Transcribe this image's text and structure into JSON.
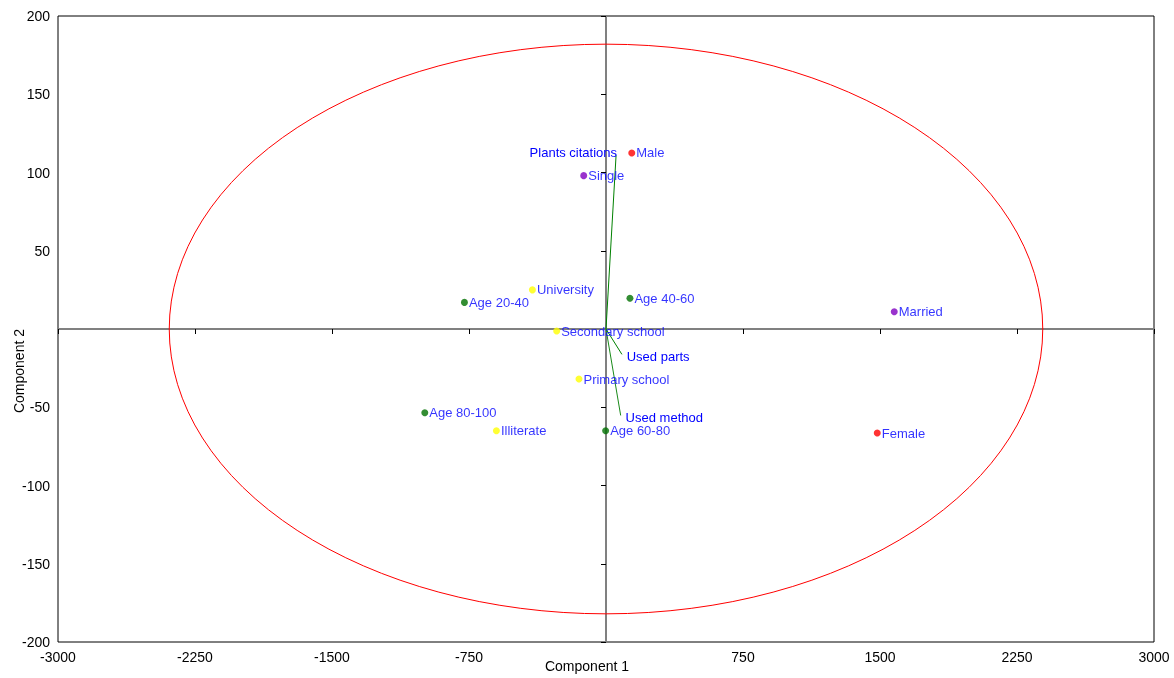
{
  "chart_data": {
    "type": "scatter",
    "xlabel": "Component 1",
    "ylabel": "Component 2",
    "xlim": [
      -3000,
      3000
    ],
    "ylim": [
      -200,
      200
    ],
    "xticks": [
      -3000,
      -2250,
      -1500,
      -750,
      750,
      1500,
      2250,
      3000
    ],
    "yticks": [
      -200,
      -150,
      -100,
      -50,
      50,
      100,
      150,
      200
    ],
    "grid": false,
    "legend": false,
    "marker": "circle",
    "series": [
      {
        "name": "Male",
        "color": "#ff0000",
        "x": [
          141
        ],
        "values": [
          112.5
        ]
      },
      {
        "name": "Female",
        "color": "#ff0000",
        "x": [
          1485
        ],
        "values": [
          -66.5
        ]
      },
      {
        "name": "Single",
        "color": "#8000c0",
        "x": [
          -122
        ],
        "values": [
          98
        ]
      },
      {
        "name": "Married",
        "color": "#8000c0",
        "x": [
          1578
        ],
        "values": [
          11
        ]
      },
      {
        "name": "Age 20-40",
        "color": "#007000",
        "x": [
          -775
        ],
        "values": [
          17
        ]
      },
      {
        "name": "Age 40-60",
        "color": "#007000",
        "x": [
          131
        ],
        "values": [
          19.6
        ]
      },
      {
        "name": "Age 60-80",
        "color": "#007000",
        "x": [
          -2
        ],
        "values": [
          -65
        ]
      },
      {
        "name": "Age 80-100",
        "color": "#007000",
        "x": [
          -992
        ],
        "values": [
          -53.5
        ]
      },
      {
        "name": "University",
        "color": "#ffff00",
        "x": [
          -403
        ],
        "values": [
          25
        ]
      },
      {
        "name": "Secondary school",
        "color": "#ffff00",
        "x": [
          -270
        ],
        "values": [
          -1.3
        ]
      },
      {
        "name": "Primary school",
        "color": "#ffff00",
        "x": [
          -148
        ],
        "values": [
          -32
        ]
      },
      {
        "name": "Illiterate",
        "color": "#ffff00",
        "x": [
          -600
        ],
        "values": [
          -65
        ]
      },
      {
        "name": "Plants citations",
        "type": "line",
        "marker": "none",
        "color": "#008000",
        "x": [
          0,
          55
        ],
        "values": [
          0,
          110.7
        ]
      },
      {
        "name": "Used parts",
        "type": "line",
        "marker": "none",
        "color": "#008000",
        "x": [
          0,
          86
        ],
        "values": [
          0,
          -16
        ]
      },
      {
        "name": "Used method",
        "type": "line",
        "marker": "none",
        "color": "#1a8a1a",
        "x": [
          0,
          80
        ],
        "values": [
          0,
          -55
        ]
      }
    ]
  }
}
